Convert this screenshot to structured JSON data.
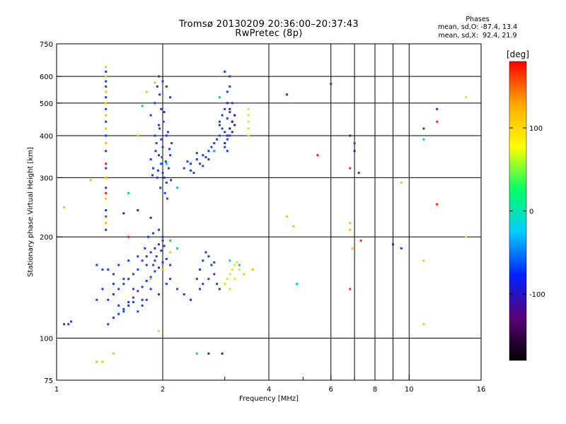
{
  "chart_data": {
    "type": "scatter",
    "title": "Tromsø 20130209 20:36:00–20:37:43",
    "subtitle": "RwPretec (8p)",
    "xlabel": "Frequency [MHz]",
    "ylabel": "Stationary phase Virtual Height [km]",
    "xscale": "log",
    "yscale": "log",
    "xlim": [
      1,
      16
    ],
    "ylim": [
      75,
      750
    ],
    "xticks": [
      1,
      2,
      4,
      6,
      8,
      10,
      16
    ],
    "xtick_labels": [
      "1",
      "2",
      "4",
      "6",
      "8",
      "10",
      "16"
    ],
    "xminor_ticks": [
      3,
      5,
      7,
      9
    ],
    "xgrid": [
      2,
      4,
      6,
      7,
      8,
      9,
      10
    ],
    "yticks": [
      75,
      100,
      200,
      300,
      400,
      500,
      600,
      750
    ],
    "ytick_labels": [
      "75",
      "100",
      "200",
      "300",
      "400",
      "500",
      "600",
      "750"
    ],
    "ygrid": [
      100,
      200,
      300,
      400,
      500,
      600
    ],
    "grid": true,
    "colorbar": {
      "label": "[deg]",
      "range": [
        -180,
        180
      ],
      "ticks": [
        100,
        0,
        -100
      ],
      "tick_labels": [
        "100",
        "0",
        "-100"
      ],
      "colors": [
        "#000000",
        "#5a0078",
        "#0022ff",
        "#00ccff",
        "#00ff66",
        "#ffff00",
        "#ffaa00",
        "#ff0000"
      ]
    },
    "stats": {
      "heading": "Phases",
      "line1": "mean, sd,O: -87.4, 13.4",
      "line2": "mean, sd,X:  92.4, 21.9"
    },
    "series": [
      {
        "color": "#1a3cff",
        "points": [
          [
            1.9,
            400
          ],
          [
            1.92,
            380
          ],
          [
            1.95,
            350
          ],
          [
            1.98,
            330
          ],
          [
            2.0,
            310
          ],
          [
            2.02,
            300
          ],
          [
            2.05,
            290
          ],
          [
            2.08,
            320
          ],
          [
            2.1,
            350
          ],
          [
            2.12,
            380
          ],
          [
            1.85,
            340
          ],
          [
            1.88,
            320
          ],
          [
            1.93,
            300
          ],
          [
            1.97,
            280
          ],
          [
            2.03,
            270
          ],
          [
            2.06,
            260
          ],
          [
            1.96,
            420
          ],
          [
            2.01,
            440
          ],
          [
            2.07,
            410
          ],
          [
            1.91,
            360
          ],
          [
            1.99,
            345
          ],
          [
            2.04,
            335
          ],
          [
            2.09,
            365
          ],
          [
            1.87,
            305
          ],
          [
            1.94,
            315
          ],
          [
            2.11,
            295
          ],
          [
            1.98,
            390
          ],
          [
            2.0,
            370
          ],
          [
            1.95,
            430
          ],
          [
            2.05,
            400
          ],
          [
            1.9,
            500
          ],
          [
            1.93,
            560
          ],
          [
            1.96,
            530
          ],
          [
            1.98,
            480
          ],
          [
            2.02,
            470
          ],
          [
            1.85,
            460
          ],
          [
            2.3,
            320
          ],
          [
            2.4,
            330
          ],
          [
            2.5,
            340
          ],
          [
            2.6,
            350
          ],
          [
            2.7,
            360
          ],
          [
            2.8,
            380
          ],
          [
            2.9,
            400
          ],
          [
            2.45,
            310
          ],
          [
            2.55,
            330
          ],
          [
            2.65,
            345
          ],
          [
            2.75,
            370
          ],
          [
            2.85,
            390
          ],
          [
            2.35,
            335
          ],
          [
            2.5,
            355
          ],
          [
            2.6,
            325
          ],
          [
            2.7,
            340
          ],
          [
            2.8,
            360
          ],
          [
            2.4,
            315
          ],
          [
            2.95,
            420
          ],
          [
            2.9,
            440
          ],
          [
            2.9,
            430
          ],
          [
            2.95,
            460
          ],
          [
            3.0,
            410
          ],
          [
            3.0,
            480
          ],
          [
            3.05,
            390
          ],
          [
            3.05,
            450
          ],
          [
            3.1,
            470
          ],
          [
            3.1,
            420
          ],
          [
            3.15,
            500
          ],
          [
            3.15,
            440
          ],
          [
            3.2,
            460
          ],
          [
            3.0,
            370
          ],
          [
            3.05,
            360
          ],
          [
            3.1,
            400
          ],
          [
            1.4,
            130
          ],
          [
            1.45,
            135
          ],
          [
            1.5,
            140
          ],
          [
            1.55,
            145
          ],
          [
            1.6,
            150
          ],
          [
            1.65,
            155
          ],
          [
            1.7,
            160
          ],
          [
            1.75,
            170
          ],
          [
            1.8,
            175
          ],
          [
            1.85,
            180
          ],
          [
            1.9,
            185
          ],
          [
            1.95,
            190
          ],
          [
            2.0,
            195
          ],
          [
            1.5,
            125
          ],
          [
            1.55,
            122
          ],
          [
            1.6,
            128
          ],
          [
            1.65,
            132
          ],
          [
            1.7,
            138
          ],
          [
            1.75,
            142
          ],
          [
            1.8,
            148
          ],
          [
            1.85,
            152
          ],
          [
            1.9,
            158
          ],
          [
            1.95,
            162
          ],
          [
            2.0,
            168
          ],
          [
            2.05,
            172
          ],
          [
            2.1,
            165
          ],
          [
            1.4,
            160
          ],
          [
            1.45,
            155
          ],
          [
            1.5,
            165
          ],
          [
            1.6,
            170
          ],
          [
            1.7,
            175
          ],
          [
            1.8,
            165
          ],
          [
            1.9,
            170
          ],
          [
            2.0,
            160
          ],
          [
            2.1,
            150
          ],
          [
            2.2,
            140
          ],
          [
            2.3,
            135
          ],
          [
            2.4,
            130
          ],
          [
            2.05,
            145
          ],
          [
            1.95,
            135
          ],
          [
            1.85,
            140
          ],
          [
            1.75,
            130
          ],
          [
            1.65,
            140
          ],
          [
            1.55,
            150
          ],
          [
            1.45,
            145
          ],
          [
            1.35,
            140
          ],
          [
            1.3,
            130
          ],
          [
            1.3,
            165
          ],
          [
            1.35,
            160
          ],
          [
            1.4,
            110
          ],
          [
            1.45,
            115
          ],
          [
            1.5,
            118
          ],
          [
            1.55,
            120
          ],
          [
            1.6,
            125
          ],
          [
            1.65,
            128
          ],
          [
            1.7,
            120
          ],
          [
            1.75,
            125
          ],
          [
            1.8,
            130
          ],
          [
            1.88,
            165
          ],
          [
            1.92,
            175
          ],
          [
            1.98,
            182
          ],
          [
            2.02,
            188
          ],
          [
            1.82,
            200
          ],
          [
            1.88,
            205
          ],
          [
            1.95,
            210
          ],
          [
            2.0,
            200
          ],
          [
            1.78,
            185
          ],
          [
            2.5,
            150
          ],
          [
            2.55,
            160
          ],
          [
            2.6,
            170
          ],
          [
            2.65,
            180
          ],
          [
            2.7,
            175
          ],
          [
            2.75,
            165
          ],
          [
            2.8,
            155
          ],
          [
            2.85,
            145
          ],
          [
            2.9,
            140
          ],
          [
            2.6,
            145
          ],
          [
            2.7,
            150
          ],
          [
            2.8,
            168
          ],
          [
            2.55,
            140
          ],
          [
            1.05,
            110
          ],
          [
            1.08,
            110
          ],
          [
            1.1,
            112
          ],
          [
            1.38,
            620
          ],
          [
            1.38,
            580
          ],
          [
            1.38,
            560
          ],
          [
            1.38,
            520
          ],
          [
            1.38,
            480
          ],
          [
            1.38,
            440
          ],
          [
            1.38,
            400
          ],
          [
            1.38,
            360
          ],
          [
            1.38,
            320
          ],
          [
            1.38,
            280
          ],
          [
            1.38,
            240
          ],
          [
            1.38,
            210
          ],
          [
            1.95,
            600
          ],
          [
            2.05,
            560
          ],
          [
            2.1,
            520
          ],
          [
            2.0,
            580
          ],
          [
            3.0,
            620
          ],
          [
            3.1,
            560
          ],
          [
            3.1,
            600
          ],
          [
            3.05,
            540
          ],
          [
            4.5,
            530
          ],
          [
            7.0,
            380
          ],
          [
            7.2,
            310
          ],
          [
            9.5,
            185
          ],
          [
            11.0,
            420
          ],
          [
            12.0,
            480
          ],
          [
            6.0,
            570
          ]
        ]
      },
      {
        "color": "#4a1aa0",
        "points": [
          [
            3.0,
            380
          ],
          [
            3.05,
            400
          ],
          [
            3.1,
            420
          ],
          [
            3.15,
            440
          ],
          [
            3.2,
            460
          ],
          [
            3.1,
            480
          ],
          [
            3.2,
            430
          ],
          [
            3.05,
            500
          ],
          [
            3.15,
            410
          ],
          [
            1.55,
            235
          ],
          [
            1.7,
            240
          ],
          [
            1.85,
            228
          ],
          [
            2.7,
            90
          ],
          [
            2.95,
            90
          ],
          [
            6.8,
            400
          ],
          [
            7.0,
            360
          ],
          [
            9.0,
            190
          ]
        ]
      },
      {
        "color": "#00c8f0",
        "points": [
          [
            2.1,
            195
          ],
          [
            2.2,
            185
          ],
          [
            1.95,
            105
          ],
          [
            2.5,
            90
          ],
          [
            3.1,
            170
          ],
          [
            3.3,
            165
          ],
          [
            4.8,
            145
          ],
          [
            11.0,
            390
          ],
          [
            2.05,
            330
          ],
          [
            2.2,
            280
          ]
        ]
      },
      {
        "color": "#00e070",
        "points": [
          [
            2.9,
            520
          ],
          [
            1.75,
            490
          ],
          [
            2.8,
            360
          ],
          [
            1.6,
            270
          ]
        ]
      },
      {
        "color": "#ccf020",
        "points": [
          [
            3.0,
            145
          ],
          [
            3.05,
            150
          ],
          [
            3.1,
            155
          ],
          [
            3.15,
            160
          ],
          [
            3.2,
            165
          ],
          [
            3.25,
            168
          ],
          [
            3.3,
            160
          ],
          [
            3.1,
            140
          ],
          [
            3.2,
            150
          ],
          [
            3.5,
            400
          ],
          [
            3.5,
            420
          ],
          [
            3.5,
            440
          ],
          [
            3.5,
            460
          ],
          [
            3.5,
            480
          ],
          [
            1.95,
            105
          ],
          [
            14.5,
            520
          ],
          [
            14.5,
            200
          ]
        ]
      },
      {
        "color": "#ffc000",
        "points": [
          [
            1.38,
            640
          ],
          [
            1.38,
            600
          ],
          [
            1.38,
            540
          ],
          [
            1.38,
            500
          ],
          [
            1.38,
            460
          ],
          [
            1.38,
            420
          ],
          [
            1.38,
            380
          ],
          [
            1.38,
            300
          ],
          [
            1.38,
            260
          ],
          [
            1.38,
            220
          ],
          [
            1.3,
            85
          ],
          [
            1.35,
            85
          ],
          [
            1.45,
            90
          ],
          [
            1.25,
            295
          ],
          [
            1.7,
            400
          ],
          [
            1.85,
            150
          ],
          [
            2.0,
            160
          ],
          [
            2.1,
            180
          ],
          [
            1.05,
            245
          ],
          [
            4.5,
            230
          ],
          [
            4.7,
            215
          ],
          [
            6.8,
            220
          ],
          [
            6.8,
            210
          ],
          [
            6.9,
            185
          ],
          [
            9.5,
            290
          ],
          [
            11.0,
            110
          ],
          [
            11.0,
            170
          ],
          [
            3.4,
            155
          ],
          [
            3.6,
            160
          ],
          [
            1.9,
            575
          ],
          [
            1.8,
            540
          ]
        ]
      },
      {
        "color": "#ff2020",
        "points": [
          [
            5.5,
            350
          ],
          [
            6.8,
            320
          ],
          [
            7.3,
            195
          ],
          [
            6.8,
            140
          ],
          [
            12.0,
            250
          ],
          [
            1.38,
            330
          ],
          [
            1.38,
            270
          ],
          [
            1.38,
            230
          ],
          [
            12.0,
            440
          ],
          [
            1.6,
            200
          ]
        ]
      }
    ]
  }
}
